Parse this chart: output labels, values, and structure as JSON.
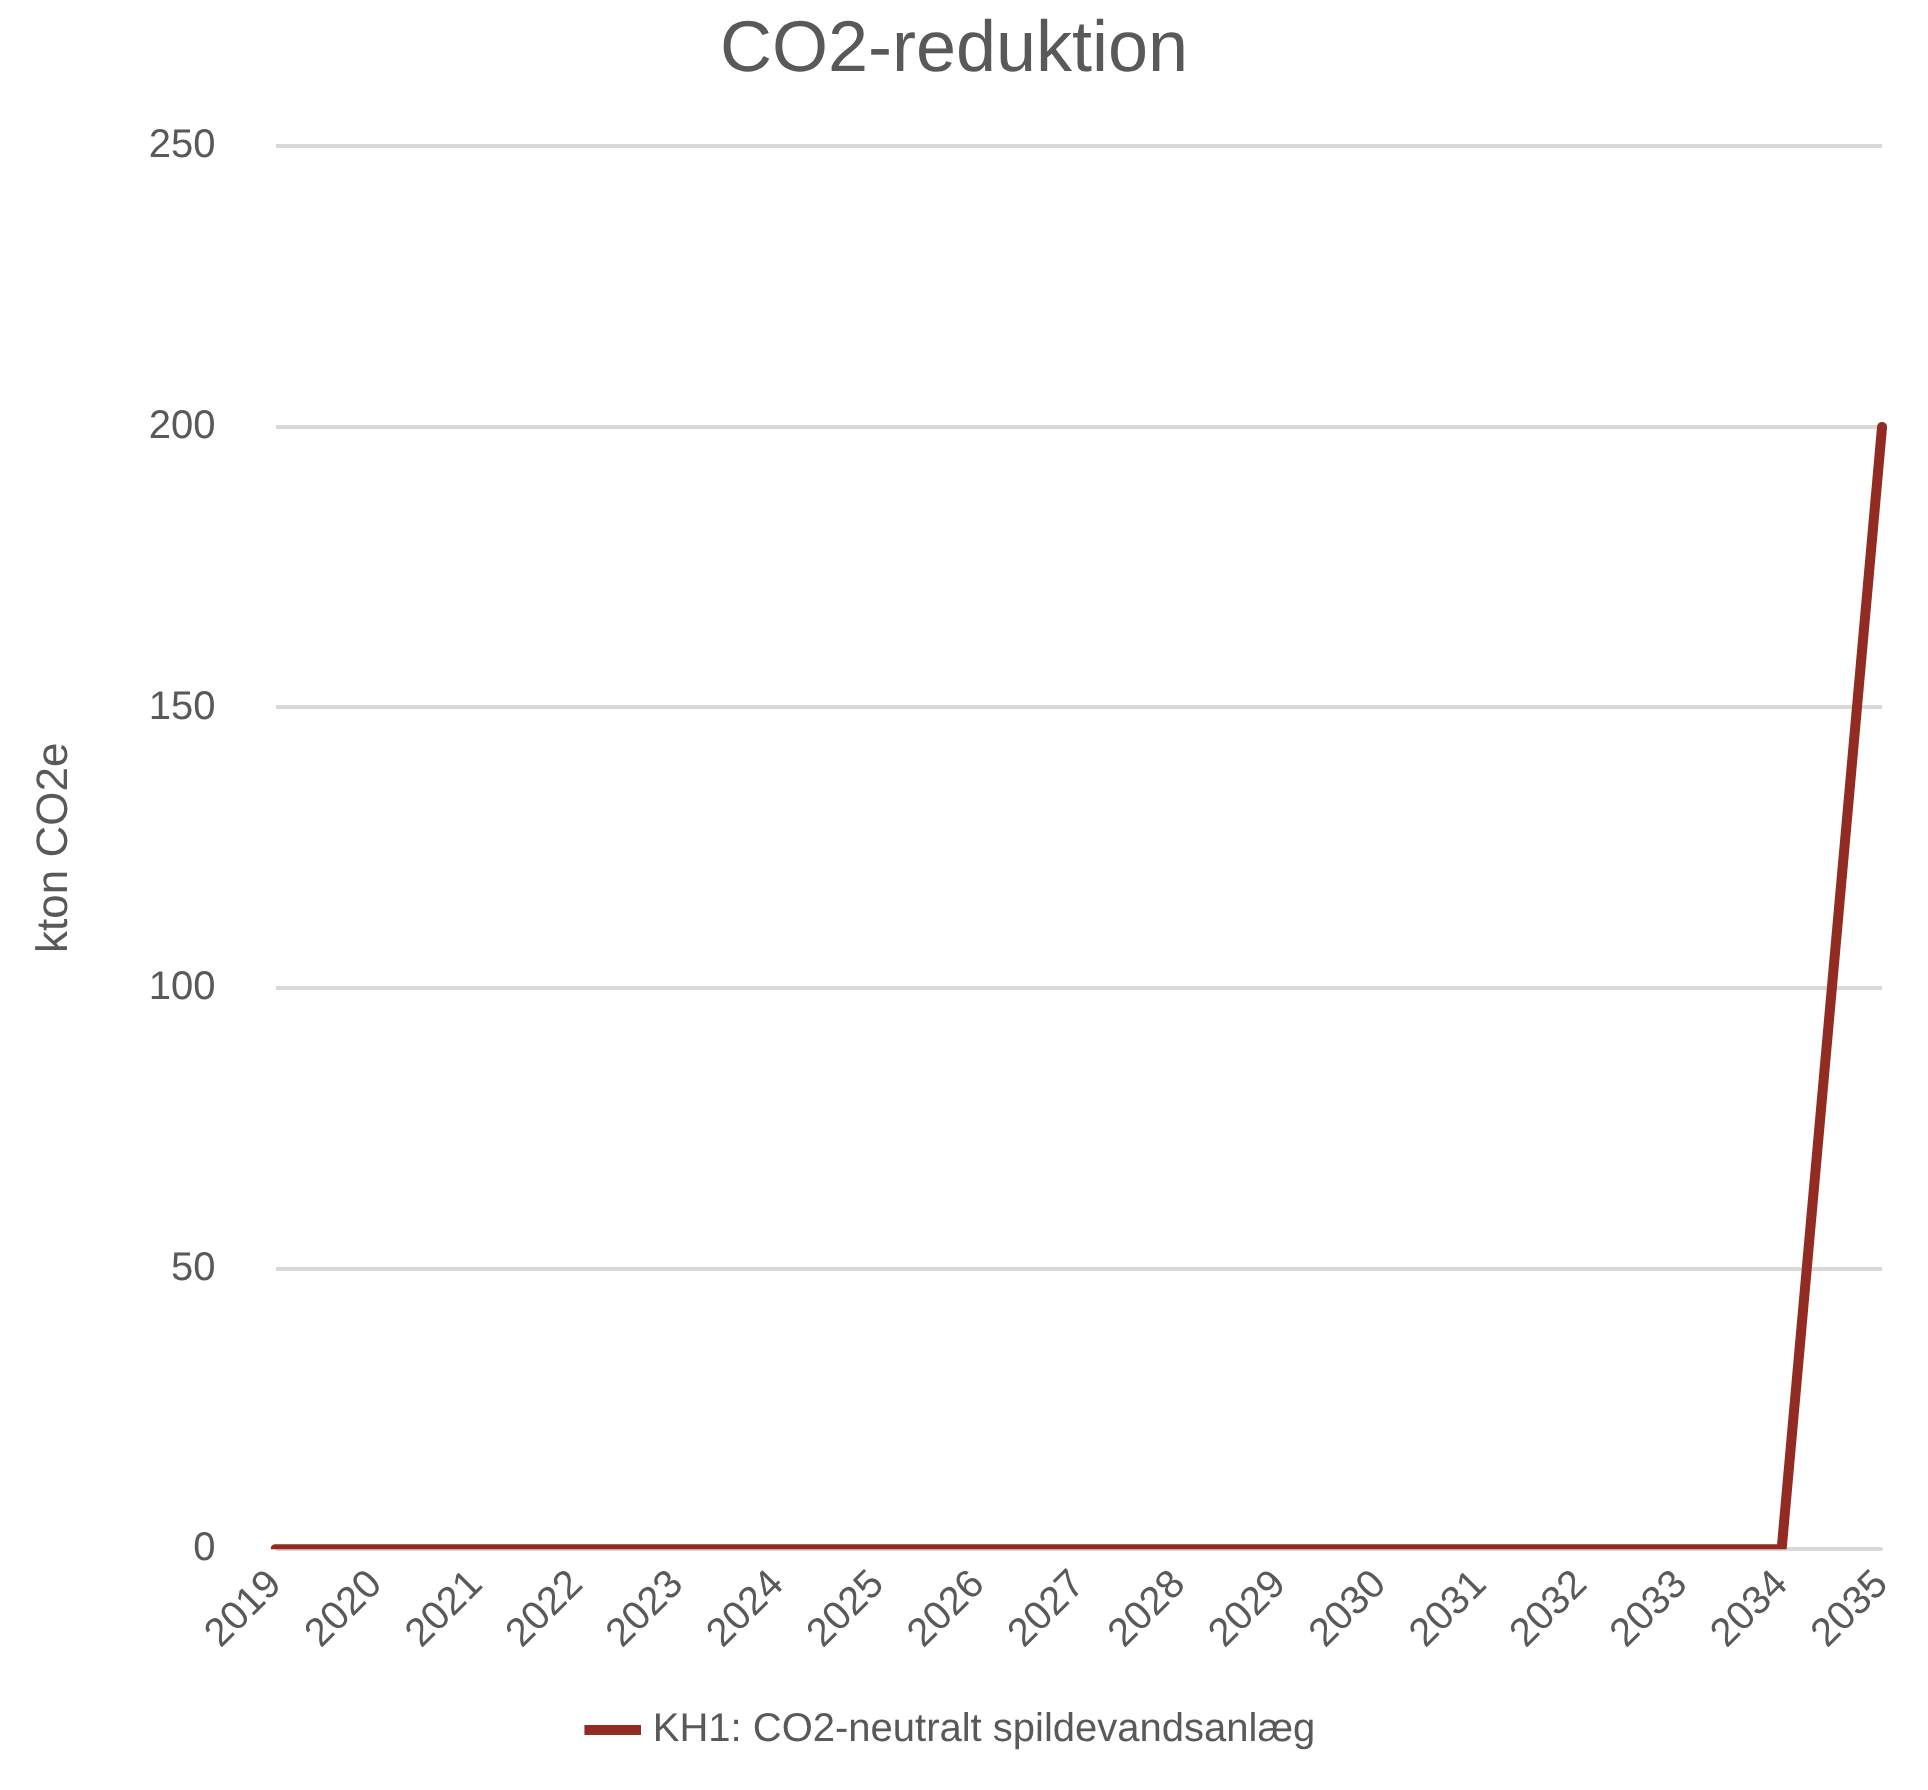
{
  "chart_data": {
    "type": "line",
    "title": "CO2-reduktion",
    "ylabel": "kton CO2e",
    "categories": [
      "2019",
      "2020",
      "2021",
      "2022",
      "2023",
      "2024",
      "2025",
      "2026",
      "2027",
      "2028",
      "2029",
      "2030",
      "2031",
      "2032",
      "2033",
      "2034",
      "2035"
    ],
    "series": [
      {
        "name": "KH1: CO2-neutralt spildevandsanlæg",
        "color": "#922b21",
        "values": [
          0,
          0,
          0,
          0,
          0,
          0,
          0,
          0,
          0,
          0,
          0,
          0,
          0,
          0,
          0,
          0,
          200
        ]
      }
    ],
    "ylim": [
      0,
      250
    ],
    "yticks": [
      0,
      50,
      100,
      150,
      200,
      250
    ],
    "grid": "y",
    "legend": "bottom",
    "marker": "none",
    "line_style": "solid"
  }
}
